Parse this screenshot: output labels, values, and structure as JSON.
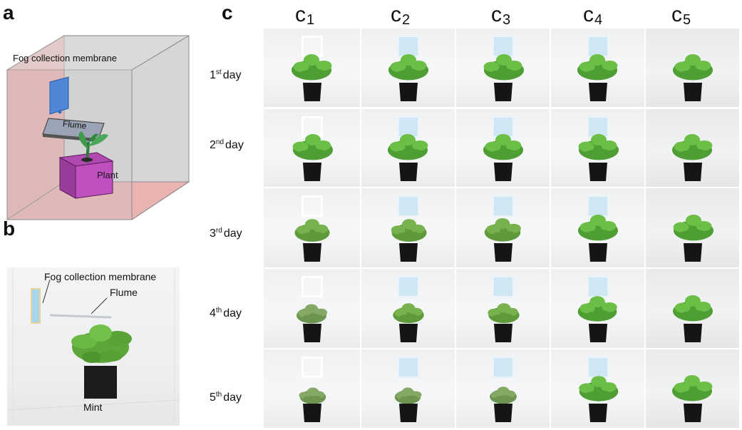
{
  "panels": {
    "a": "a",
    "b": "b",
    "c": "c"
  },
  "schematic": {
    "membrane_label": "Fog collection membrane",
    "flume_label": "Flume",
    "plant_label": "Plant"
  },
  "photo": {
    "membrane_label": "Fog collection membrane",
    "flume_label": "Flume",
    "plant_label": "Mint"
  },
  "columns": [
    {
      "letter": "c",
      "sub": "1"
    },
    {
      "letter": "c",
      "sub": "2"
    },
    {
      "letter": "c",
      "sub": "3"
    },
    {
      "letter": "c",
      "sub": "4"
    },
    {
      "letter": "c",
      "sub": "5"
    }
  ],
  "rows": [
    {
      "num": "1",
      "sup": "st",
      "word": "day"
    },
    {
      "num": "2",
      "sup": "nd",
      "word": "day"
    },
    {
      "num": "3",
      "sup": "rd",
      "word": "day"
    },
    {
      "num": "4",
      "sup": "th",
      "word": "day"
    },
    {
      "num": "5",
      "sup": "th",
      "word": "day"
    }
  ],
  "membrane_type": [
    "white",
    "blue",
    "blue",
    "blue",
    "none"
  ],
  "plant_health": [
    [
      1.0,
      1.0,
      1.0,
      1.0,
      1.0
    ],
    [
      1.0,
      1.0,
      1.0,
      1.0,
      1.0
    ],
    [
      0.75,
      0.75,
      0.8,
      1.0,
      1.0
    ],
    [
      0.5,
      0.55,
      0.55,
      0.95,
      1.0
    ],
    [
      0.3,
      0.3,
      0.35,
      0.95,
      1.0
    ]
  ]
}
